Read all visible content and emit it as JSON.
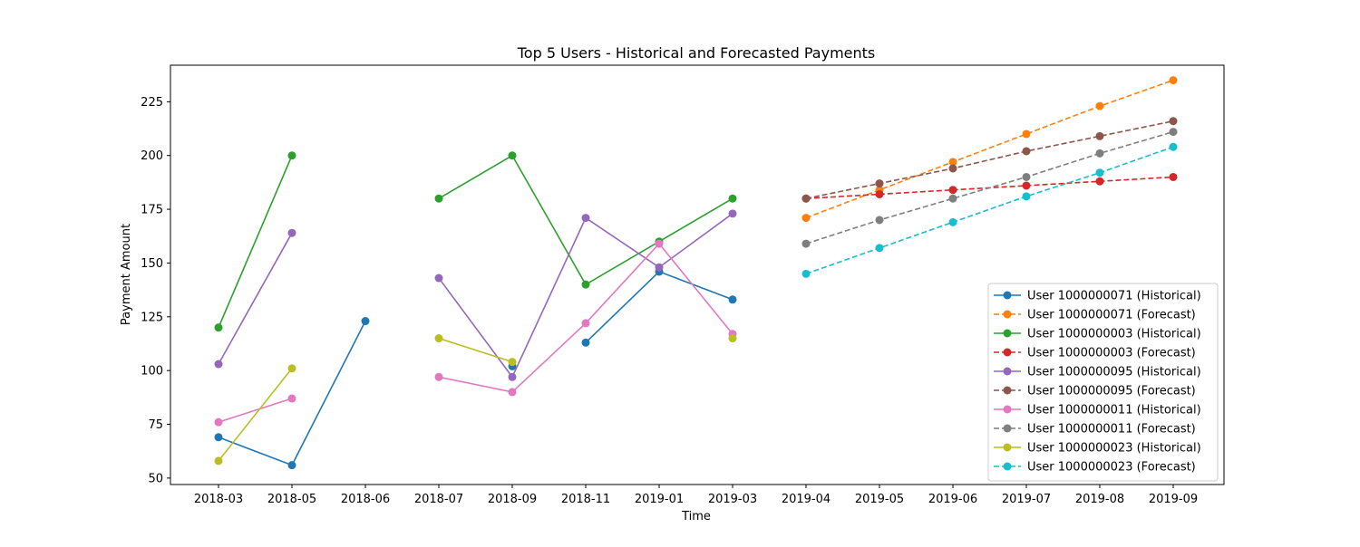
{
  "chart_data": {
    "type": "line",
    "title": "Top 5 Users - Historical and Forecasted Payments",
    "xlabel": "Time",
    "ylabel": "Payment Amount",
    "categories": [
      "2018-03",
      "2018-05",
      "2018-06",
      "2018-07",
      "2018-09",
      "2018-11",
      "2019-01",
      "2019-03",
      "2019-04",
      "2019-05",
      "2019-06",
      "2019-07",
      "2019-08",
      "2019-09"
    ],
    "ylim": [
      47,
      242
    ],
    "yticks": [
      50,
      75,
      100,
      125,
      150,
      175,
      200,
      225
    ],
    "grid": false,
    "legend_position": "lower-right",
    "series": [
      {
        "name": "User 1000000071 (Historical)",
        "color": "#1f77b4",
        "style": "solid",
        "values": [
          69,
          56,
          123,
          null,
          null,
          113,
          146,
          133,
          null,
          null,
          null,
          null,
          null,
          null
        ],
        "extra_points": [
          {
            "category": "2018-09",
            "value": 102
          }
        ]
      },
      {
        "name": "User 1000000071 (Forecast)",
        "color": "#ff7f0e",
        "style": "dashed",
        "values": [
          null,
          null,
          null,
          null,
          null,
          null,
          null,
          null,
          171,
          184,
          197,
          210,
          223,
          235
        ]
      },
      {
        "name": "User 1000000003 (Historical)",
        "color": "#2ca02c",
        "style": "solid",
        "values": [
          120,
          200,
          null,
          180,
          200,
          140,
          160,
          180,
          null,
          null,
          null,
          null,
          null,
          null
        ]
      },
      {
        "name": "User 1000000003 (Forecast)",
        "color": "#d62728",
        "style": "dashed",
        "values": [
          null,
          null,
          null,
          null,
          null,
          null,
          null,
          null,
          180,
          182,
          184,
          186,
          188,
          190
        ]
      },
      {
        "name": "User 1000000095 (Historical)",
        "color": "#9467bd",
        "style": "solid",
        "values": [
          103,
          164,
          null,
          143,
          97,
          171,
          148,
          173,
          null,
          null,
          null,
          null,
          null,
          null
        ]
      },
      {
        "name": "User 1000000095 (Forecast)",
        "color": "#8c564b",
        "style": "dashed",
        "values": [
          null,
          null,
          null,
          null,
          null,
          null,
          null,
          null,
          180,
          187,
          194,
          202,
          209,
          216
        ]
      },
      {
        "name": "User 1000000011 (Historical)",
        "color": "#e377c2",
        "style": "solid",
        "values": [
          76,
          87,
          null,
          97,
          90,
          122,
          159,
          117,
          null,
          null,
          null,
          null,
          null,
          null
        ]
      },
      {
        "name": "User 1000000011 (Forecast)",
        "color": "#7f7f7f",
        "style": "dashed",
        "values": [
          null,
          null,
          null,
          null,
          null,
          null,
          null,
          null,
          159,
          170,
          180,
          190,
          201,
          211
        ]
      },
      {
        "name": "User 1000000023 (Historical)",
        "color": "#bcbd22",
        "style": "solid",
        "values": [
          58,
          101,
          null,
          115,
          104,
          null,
          null,
          115,
          null,
          null,
          null,
          null,
          null,
          null
        ]
      },
      {
        "name": "User 1000000023 (Forecast)",
        "color": "#17becf",
        "style": "dashed",
        "values": [
          null,
          null,
          null,
          null,
          null,
          null,
          null,
          null,
          145,
          157,
          169,
          181,
          192,
          204
        ]
      }
    ]
  }
}
